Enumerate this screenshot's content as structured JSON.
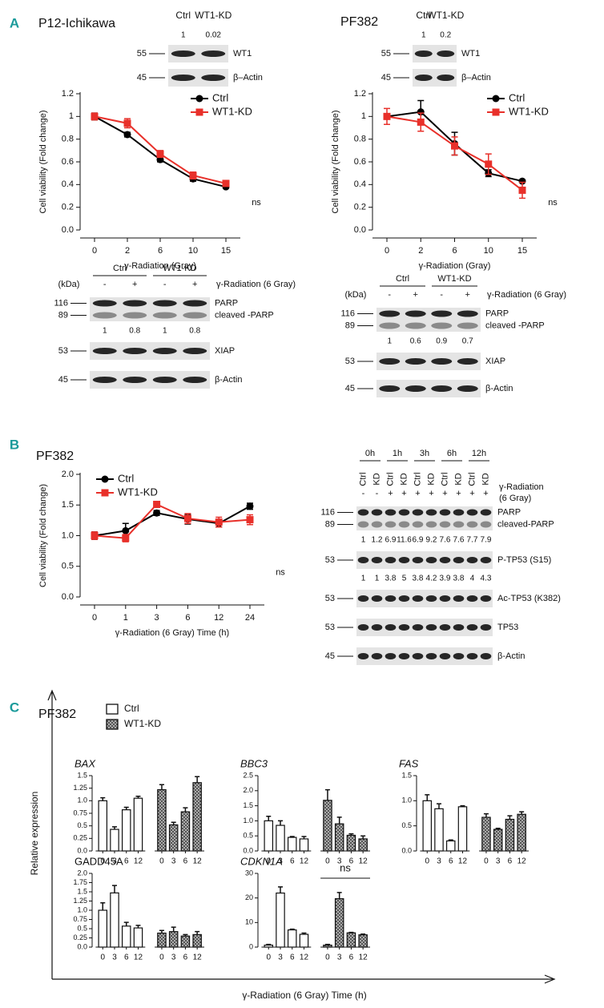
{
  "panel_labels": [
    "A",
    "B",
    "C"
  ],
  "chart_data": [
    {
      "type": "line",
      "title": "P12-Ichikawa",
      "xlabel": "γ-Radiation (Gray)",
      "ylabel": "Cell viability (Fold change)",
      "categories": [
        "0",
        "2",
        "6",
        "10",
        "15"
      ],
      "series": [
        {
          "name": "Ctrl",
          "color": "#000000",
          "marker": "circle",
          "values": [
            1,
            0.84,
            0.62,
            0.45,
            0.38
          ],
          "errors": [
            0.03,
            0.02,
            0.02,
            0.02,
            0.01
          ]
        },
        {
          "name": "WT1-KD",
          "color": "#e8302a",
          "marker": "square",
          "values": [
            1,
            0.94,
            0.67,
            0.48,
            0.41
          ],
          "errors": [
            0.03,
            0.04,
            0.03,
            0.03,
            0.02
          ]
        }
      ],
      "ylim": [
        0,
        1.2
      ],
      "yticks": [
        {
          "value": 0,
          "label": "0.0"
        },
        0.2,
        0.4,
        0.6,
        0.8,
        1,
        1.2
      ],
      "legend": "upper right",
      "annotation": "ns"
    },
    {
      "type": "line",
      "title": "PF382",
      "xlabel": "γ-Radiation (Gray)",
      "ylabel": "Cell viability (Fold change)",
      "categories": [
        "0",
        "2",
        "6",
        "10",
        "15"
      ],
      "series": [
        {
          "name": "Ctrl",
          "color": "#000000",
          "marker": "circle",
          "values": [
            1,
            1.04,
            0.76,
            0.5,
            0.43
          ],
          "errors": [
            0.02,
            0.1,
            0.1,
            0.03,
            0.01
          ]
        },
        {
          "name": "WT1-KD",
          "color": "#e8302a",
          "marker": "square",
          "values": [
            1,
            0.95,
            0.74,
            0.58,
            0.35
          ],
          "errors": [
            0.07,
            0.08,
            0.08,
            0.09,
            0.07
          ]
        }
      ],
      "ylim": [
        0,
        1.2
      ],
      "yticks": [
        {
          "value": 0,
          "label": "0.0"
        },
        0.2,
        0.4,
        0.6,
        0.8,
        1,
        1.2
      ],
      "legend": "upper right",
      "annotation": "ns"
    },
    {
      "type": "line",
      "title": "PF382",
      "xlabel": "γ-Radiation (6 Gray) Time (h)",
      "ylabel": "Cell viability (Fold change)",
      "categories": [
        "0",
        "1",
        "3",
        "6",
        "12",
        "24"
      ],
      "series": [
        {
          "name": "Ctrl",
          "color": "#000000",
          "marker": "circle",
          "values": [
            1.0,
            1.08,
            1.37,
            1.27,
            1.2,
            1.48
          ],
          "errors": [
            0.06,
            0.12,
            0.04,
            0.08,
            0.06,
            0.05
          ]
        },
        {
          "name": "WT1-KD",
          "color": "#e8302a",
          "marker": "square",
          "values": [
            1.0,
            0.96,
            1.51,
            1.28,
            1.22,
            1.26
          ],
          "errors": [
            0.06,
            0.06,
            0.04,
            0.08,
            0.08,
            0.08
          ]
        }
      ],
      "ylim": [
        0,
        2
      ],
      "yticks": [
        {
          "value": 0,
          "label": "0.0"
        },
        0.5,
        {
          "value": 1,
          "label": "1.0"
        },
        1.5,
        {
          "value": 2,
          "label": "2.0"
        }
      ],
      "legend": "upper left",
      "annotation": "ns"
    },
    {
      "type": "bar",
      "title": "BAX",
      "italic_title": true,
      "categories": [
        "0",
        "3",
        "6",
        "12"
      ],
      "series": [
        {
          "color": "#ffffff",
          "values": [
            1.0,
            0.43,
            0.82,
            1.05
          ],
          "errors": [
            0.06,
            0.05,
            0.05,
            0.04
          ]
        },
        {
          "color": "#444444",
          "pattern": "crosshatch",
          "values": [
            1.22,
            0.52,
            0.78,
            1.36
          ],
          "errors": [
            0.1,
            0.05,
            0.08,
            0.12
          ]
        }
      ],
      "ylim": [
        0,
        1.5
      ],
      "yticks": [
        {
          "value": 0,
          "label": "0.0"
        },
        0.25,
        0.5,
        0.75,
        {
          "value": 1,
          "label": "1.0"
        },
        1.25,
        1.5
      ]
    },
    {
      "type": "bar",
      "title": "BBC3",
      "italic_title": true,
      "categories": [
        "0",
        "3",
        "6",
        "12"
      ],
      "series": [
        {
          "color": "#ffffff",
          "values": [
            1.0,
            0.85,
            0.45,
            0.4
          ],
          "errors": [
            0.15,
            0.15,
            0.03,
            0.08
          ]
        },
        {
          "color": "#444444",
          "pattern": "crosshatch",
          "values": [
            1.68,
            0.9,
            0.52,
            0.4
          ],
          "errors": [
            0.35,
            0.22,
            0.05,
            0.1
          ]
        }
      ],
      "ylim": [
        0,
        2.5
      ],
      "yticks": [
        {
          "value": 0,
          "label": "0.0"
        },
        0.5,
        {
          "value": 1,
          "label": "1.0"
        },
        1.5,
        {
          "value": 2,
          "label": "2.0"
        },
        2.5
      ]
    },
    {
      "type": "bar",
      "title": "FAS",
      "italic_title": true,
      "categories": [
        "0",
        "3",
        "6",
        "12"
      ],
      "series": [
        {
          "color": "#ffffff",
          "values": [
            1.0,
            0.84,
            0.2,
            0.88
          ],
          "errors": [
            0.12,
            0.1,
            0.02,
            0.02
          ]
        },
        {
          "color": "#444444",
          "pattern": "crosshatch",
          "values": [
            0.67,
            0.43,
            0.63,
            0.73
          ],
          "errors": [
            0.07,
            0.02,
            0.07,
            0.05
          ]
        }
      ],
      "ylim": [
        0,
        1.5
      ],
      "yticks": [
        {
          "value": 0,
          "label": "0.0"
        },
        0.5,
        {
          "value": 1,
          "label": "1.0"
        },
        1.5
      ]
    },
    {
      "type": "bar",
      "title": "GADD45A",
      "italic_title": false,
      "categories": [
        "0",
        "3",
        "6",
        "12"
      ],
      "series": [
        {
          "color": "#ffffff",
          "values": [
            1.0,
            1.47,
            0.57,
            0.52
          ],
          "errors": [
            0.2,
            0.2,
            0.1,
            0.07
          ]
        },
        {
          "color": "#444444",
          "pattern": "crosshatch",
          "values": [
            0.38,
            0.42,
            0.3,
            0.34
          ],
          "errors": [
            0.07,
            0.12,
            0.04,
            0.08
          ]
        }
      ],
      "ylim": [
        0,
        2
      ],
      "yticks": [
        {
          "value": 0,
          "label": "0.0"
        },
        0.25,
        0.5,
        0.75,
        {
          "value": 1,
          "label": "1.0"
        },
        1.25,
        1.5,
        1.75,
        {
          "value": 2,
          "label": "2.0"
        }
      ]
    },
    {
      "type": "bar",
      "title": "CDKN1A",
      "italic_title": true,
      "categories": [
        "0",
        "3",
        "6",
        "12"
      ],
      "series": [
        {
          "color": "#ffffff",
          "values": [
            0.8,
            22,
            7,
            5.2
          ],
          "errors": [
            0.3,
            2.5,
            0.3,
            0.5
          ]
        },
        {
          "color": "#444444",
          "pattern": "crosshatch",
          "values": [
            0.8,
            19.7,
            5.8,
            5
          ],
          "errors": [
            0.3,
            2.5,
            0.2,
            0.3
          ]
        }
      ],
      "ylim": [
        0,
        30
      ],
      "yticks": [
        0,
        10,
        20,
        30
      ],
      "annotation": "ns"
    }
  ],
  "panel_c": {
    "title": "PF382",
    "ylabel": "Relative expression",
    "xlabel": "γ-Radiation (6 Gray) Time (h)",
    "legend": [
      {
        "name": "Ctrl",
        "color": "#ffffff"
      },
      {
        "name": "WT1-KD",
        "color": "#444444",
        "pattern": "crosshatch"
      }
    ]
  },
  "blots": [
    {
      "columns": [
        "Ctrl",
        "WT1-KD"
      ],
      "quantification": [
        1,
        0.02
      ],
      "strips": [
        {
          "markers": [
            "55"
          ],
          "labels": [
            "WT1"
          ]
        },
        {
          "markers": [
            "45"
          ],
          "labels": [
            "β–Actin"
          ]
        }
      ]
    },
    {
      "column_groups": [
        "Ctrl",
        "WT1-KD"
      ],
      "unit": "(kDa)",
      "treatment": [
        "-",
        "+",
        "-",
        "+"
      ],
      "treatment_label": "γ-Radiation (6 Gray)",
      "strips": [
        {
          "markers": [
            "116",
            "89"
          ],
          "labels": [
            "PARP",
            "cleaved -PARP"
          ],
          "quantification": [
            1,
            0.8,
            1,
            0.8
          ]
        },
        {
          "markers": [
            "53"
          ],
          "labels": [
            "XIAP"
          ]
        },
        {
          "markers": [
            "45"
          ],
          "labels": [
            "β-Actin"
          ]
        }
      ]
    },
    {
      "columns": [
        "Ctrl",
        "WT1-KD"
      ],
      "quantification": [
        1,
        0.2
      ],
      "strips": [
        {
          "markers": [
            "55"
          ],
          "labels": [
            "WT1"
          ]
        },
        {
          "markers": [
            "45"
          ],
          "labels": [
            "β–Actin"
          ]
        }
      ]
    },
    {
      "column_groups": [
        "Ctrl",
        "WT1-KD"
      ],
      "unit": "(kDa)",
      "treatment": [
        "-",
        "+",
        "-",
        "+"
      ],
      "treatment_label": "γ-Radiation (6 Gray)",
      "strips": [
        {
          "markers": [
            "116",
            "89"
          ],
          "labels": [
            "PARP",
            "cleaved -PARP"
          ],
          "quantification": [
            1,
            0.6,
            0.9,
            0.7
          ]
        },
        {
          "markers": [
            "53"
          ],
          "labels": [
            "XIAP"
          ]
        },
        {
          "markers": [
            "45"
          ],
          "labels": [
            "β-Actin"
          ]
        }
      ]
    },
    {
      "column_groups": [
        "0h",
        "1h",
        "3h",
        "6h",
        "12h"
      ],
      "columns": [
        "Ctrl",
        "KD",
        "Ctrl",
        "KD",
        "Ctrl",
        "KD",
        "Ctrl",
        "KD",
        "Ctrl",
        "KD"
      ],
      "treatment": [
        "-",
        "-",
        "+",
        "+",
        "+",
        "+",
        "+",
        "+",
        "+",
        "+"
      ],
      "treatment_label": [
        "γ-Radiation",
        "(6 Gray)"
      ],
      "strips": [
        {
          "markers": [
            "116",
            "89"
          ],
          "labels": [
            "PARP",
            "cleaved-PARP"
          ],
          "quantification": [
            1,
            1.2,
            6.9,
            11.6,
            6.9,
            9.2,
            7.6,
            7.6,
            7.7,
            7.9
          ]
        },
        {
          "markers": [
            "53"
          ],
          "labels": [
            "P-TP53 (S15)"
          ],
          "quantification": [
            1,
            1,
            3.8,
            5,
            3.8,
            4.2,
            3.9,
            3.8,
            4,
            4.3
          ]
        },
        {
          "markers": [
            "53"
          ],
          "labels": [
            "Ac-TP53 (K382)"
          ]
        },
        {
          "markers": [
            "53"
          ],
          "labels": [
            "TP53"
          ]
        },
        {
          "markers": [
            "45"
          ],
          "labels": [
            "β-Actin"
          ]
        }
      ]
    }
  ]
}
